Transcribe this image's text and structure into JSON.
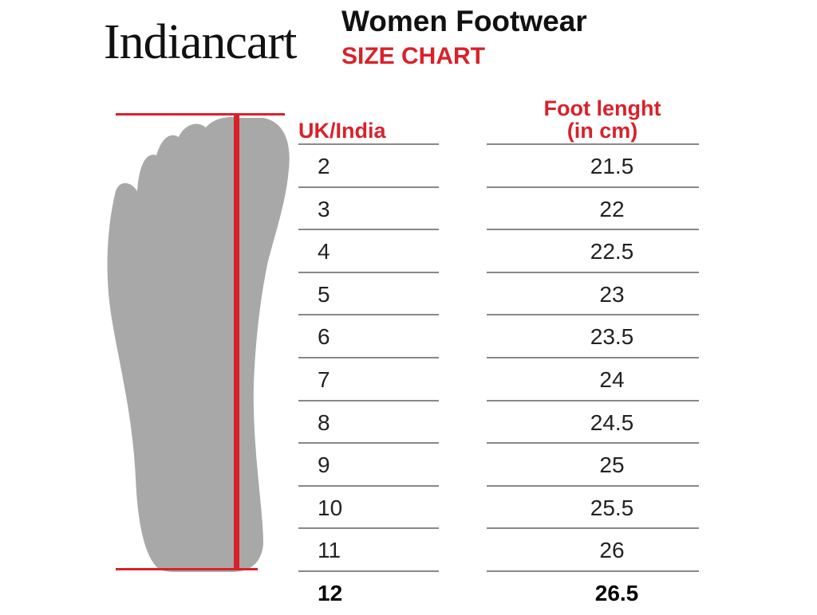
{
  "brand": "Indiancart",
  "title": "Women Footwear",
  "subtitle": "SIZE CHART",
  "colors": {
    "accent": "#d9212a",
    "foot": "#a8a8a8"
  },
  "table": {
    "headers": [
      "UK/India",
      "Foot lenght",
      "(in cm)"
    ],
    "rows": [
      {
        "size": "2",
        "length": "21.5"
      },
      {
        "size": "3",
        "length": "22"
      },
      {
        "size": "4",
        "length": "22.5"
      },
      {
        "size": "5",
        "length": "23"
      },
      {
        "size": "6",
        "length": "23.5"
      },
      {
        "size": "7",
        "length": "24"
      },
      {
        "size": "8",
        "length": "24.5"
      },
      {
        "size": "9",
        "length": "25"
      },
      {
        "size": "10",
        "length": "25.5"
      },
      {
        "size": "11",
        "length": "26"
      },
      {
        "size": "12",
        "length": "26.5"
      }
    ]
  }
}
